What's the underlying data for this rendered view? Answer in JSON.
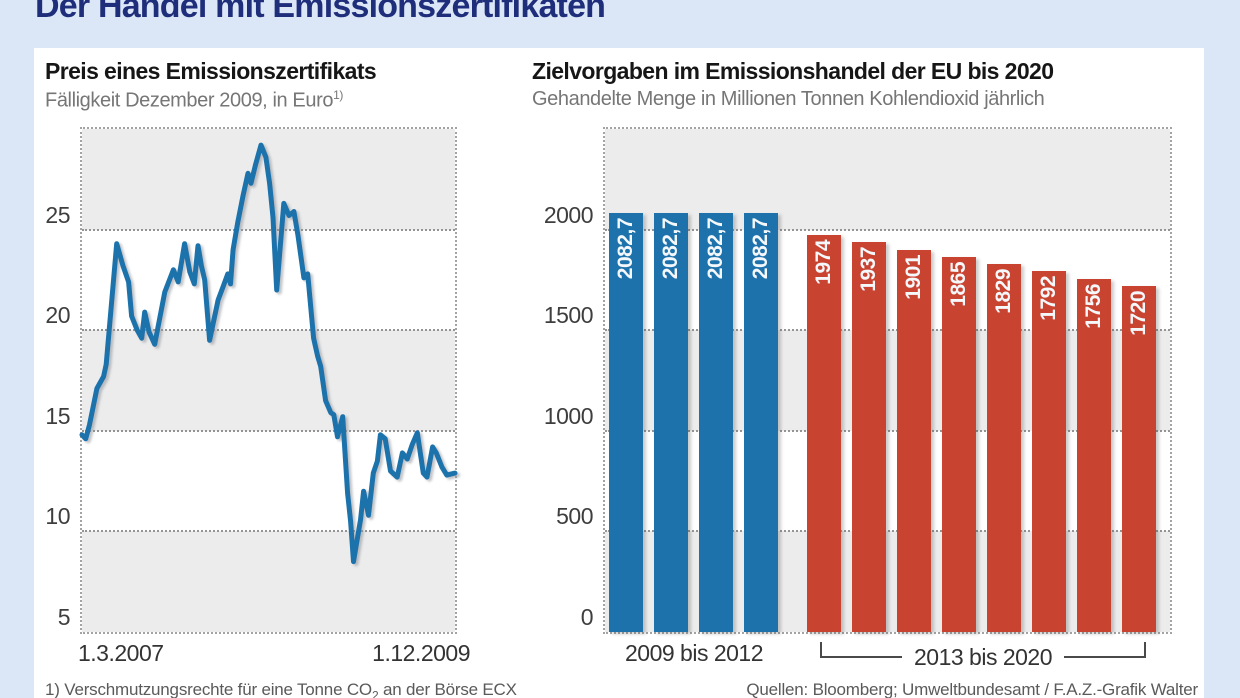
{
  "header": {
    "title": "Der Handel mit Emissionszertifikaten"
  },
  "charts": {
    "left": {
      "title": "Preis eines Emissionszertifikats",
      "subtitle": "Fälligkeit Dezember 2009, in Euro",
      "subtitle_sup": "1)"
    },
    "right": {
      "title": "Zielvorgaben im Emissionshandel der EU bis 2020",
      "subtitle": "Gehandelte Menge in Millionen Tonnen Kohlendioxid jährlich"
    }
  },
  "footer": {
    "footnote_pre": "1) Verschmutzungsrechte für eine Tonne CO",
    "footnote_sub": "2",
    "footnote_post": " an der Börse ECX",
    "sources": "Quellen: Bloomberg; Umweltbundesamt / F.A.Z.-Grafik Walter"
  },
  "colors": {
    "page_bg": "#dbe6f7",
    "panel_bg": "#ffffff",
    "band_gray": "#ececec",
    "navy_title": "#1f2e7b",
    "accent_blue": "#1e72ab",
    "accent_red": "#c94331"
  },
  "chart_data": [
    {
      "type": "line",
      "title": "Preis eines Emissionszertifikats",
      "subtitle": "Fälligkeit Dezember 2009, in Euro 1)",
      "unit": "Euro",
      "ylim": [
        5,
        30
      ],
      "y_ticks": [
        5,
        10,
        15,
        20,
        25
      ],
      "x_labels": [
        "1.3.2007",
        "1.12.2009"
      ],
      "grid": "horizontal-dotted",
      "line_color": "#1e72ab",
      "points": [
        [
          0.0,
          14.8
        ],
        [
          0.01,
          14.6
        ],
        [
          0.02,
          15.3
        ],
        [
          0.04,
          17.1
        ],
        [
          0.058,
          17.7
        ],
        [
          0.065,
          18.3
        ],
        [
          0.093,
          24.3
        ],
        [
          0.11,
          23.2
        ],
        [
          0.125,
          22.4
        ],
        [
          0.133,
          20.7
        ],
        [
          0.148,
          20.0
        ],
        [
          0.16,
          19.6
        ],
        [
          0.168,
          20.9
        ],
        [
          0.18,
          19.9
        ],
        [
          0.195,
          19.3
        ],
        [
          0.222,
          21.9
        ],
        [
          0.245,
          23.0
        ],
        [
          0.258,
          22.4
        ],
        [
          0.275,
          24.3
        ],
        [
          0.289,
          22.9
        ],
        [
          0.301,
          22.3
        ],
        [
          0.311,
          24.2
        ],
        [
          0.32,
          23.2
        ],
        [
          0.329,
          22.5
        ],
        [
          0.342,
          19.5
        ],
        [
          0.365,
          21.5
        ],
        [
          0.379,
          22.2
        ],
        [
          0.391,
          22.8
        ],
        [
          0.398,
          22.3
        ],
        [
          0.405,
          24.0
        ],
        [
          0.418,
          25.4
        ],
        [
          0.432,
          26.7
        ],
        [
          0.445,
          27.8
        ],
        [
          0.453,
          27.3
        ],
        [
          0.465,
          28.2
        ],
        [
          0.48,
          29.2
        ],
        [
          0.493,
          28.6
        ],
        [
          0.503,
          27.3
        ],
        [
          0.512,
          25.6
        ],
        [
          0.522,
          22.0
        ],
        [
          0.541,
          26.3
        ],
        [
          0.555,
          25.7
        ],
        [
          0.568,
          25.9
        ],
        [
          0.579,
          24.7
        ],
        [
          0.595,
          22.6
        ],
        [
          0.605,
          22.8
        ],
        [
          0.621,
          19.6
        ],
        [
          0.632,
          18.7
        ],
        [
          0.64,
          18.2
        ],
        [
          0.653,
          16.5
        ],
        [
          0.667,
          15.9
        ],
        [
          0.675,
          15.8
        ],
        [
          0.685,
          14.7
        ],
        [
          0.699,
          15.7
        ],
        [
          0.712,
          11.9
        ],
        [
          0.72,
          10.5
        ],
        [
          0.728,
          8.5
        ],
        [
          0.747,
          10.6
        ],
        [
          0.755,
          12.0
        ],
        [
          0.768,
          10.8
        ],
        [
          0.781,
          12.9
        ],
        [
          0.792,
          13.5
        ],
        [
          0.8,
          14.8
        ],
        [
          0.813,
          14.6
        ],
        [
          0.827,
          13.0
        ],
        [
          0.845,
          12.7
        ],
        [
          0.859,
          13.9
        ],
        [
          0.872,
          13.6
        ],
        [
          0.885,
          14.3
        ],
        [
          0.899,
          14.9
        ],
        [
          0.915,
          12.9
        ],
        [
          0.925,
          12.7
        ],
        [
          0.94,
          14.2
        ],
        [
          0.95,
          13.9
        ],
        [
          0.965,
          13.2
        ],
        [
          0.978,
          12.8
        ],
        [
          1.0,
          12.9
        ]
      ]
    },
    {
      "type": "bar",
      "title": "Zielvorgaben im Emissionshandel der EU bis 2020",
      "subtitle": "Gehandelte Menge in Millionen Tonnen Kohlendioxid jährlich",
      "ylim": [
        0,
        2500
      ],
      "y_ticks": [
        0,
        500,
        1000,
        1500,
        2000
      ],
      "grid": "horizontal-dotted",
      "series": [
        {
          "name": "2009 bis 2012",
          "color": "#1e72ab",
          "values": [
            2082.7,
            2082.7,
            2082.7,
            2082.7
          ],
          "labels": [
            "2082,7",
            "2082,7",
            "2082,7",
            "2082,7"
          ]
        },
        {
          "name": "2013 bis 2020",
          "color": "#c94331",
          "values": [
            1974,
            1937,
            1901,
            1865,
            1829,
            1792,
            1756,
            1720
          ],
          "labels": [
            "1974",
            "1937",
            "1901",
            "1865",
            "1829",
            "1792",
            "1756",
            "1720"
          ]
        }
      ]
    }
  ]
}
